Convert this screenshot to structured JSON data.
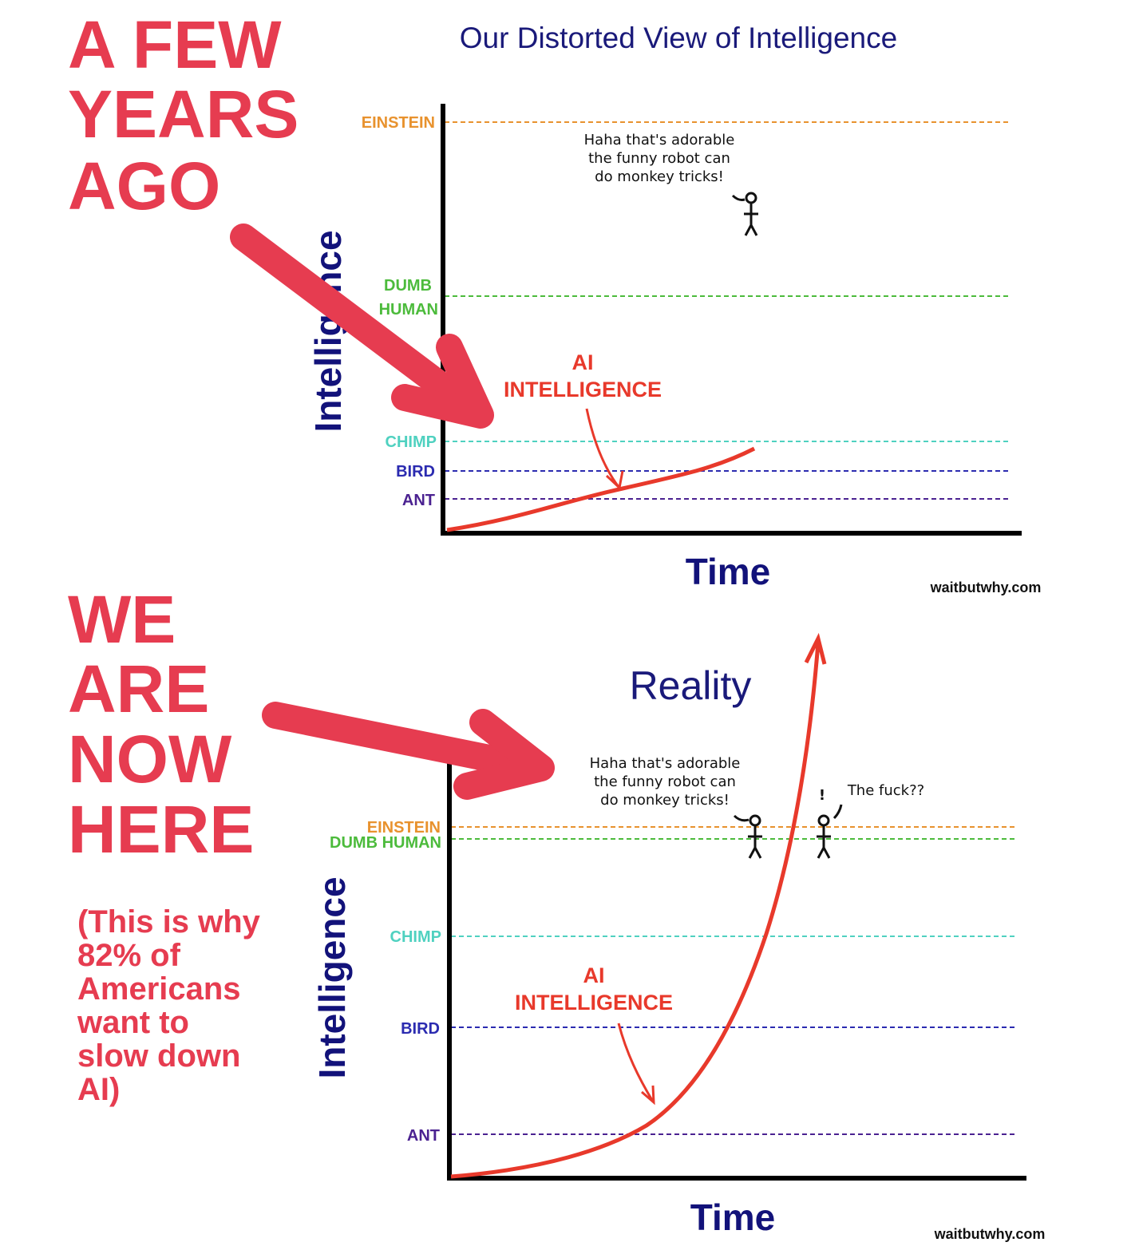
{
  "annotations": {
    "top": [
      "A FEW",
      "YEARS",
      "AGO"
    ],
    "bottom": [
      "WE",
      "ARE",
      "NOW",
      "HERE"
    ],
    "note": [
      "(This is why",
      "82% of",
      "Americans",
      "want to",
      "slow down",
      "AI)"
    ]
  },
  "top_chart": {
    "title": "Our Distorted View of Intelligence",
    "y_label": "Intelligence",
    "x_label": "Time",
    "levels": [
      [
        "EINSTEIN"
      ],
      [
        "DUMB",
        "HUMAN"
      ],
      [
        "CHIMP"
      ],
      [
        "BIRD"
      ],
      [
        "ANT"
      ]
    ],
    "curve_label": [
      "AI",
      "INTELLIGENCE"
    ],
    "speech": [
      "Haha that's adorable",
      "the funny robot can",
      "do monkey tricks!"
    ],
    "credit": "waitbutwhy.com"
  },
  "bottom_chart": {
    "title": "Reality",
    "y_label": "Intelligence",
    "x_label": "Time",
    "levels": [
      "EINSTEIN",
      "DUMB HUMAN",
      "CHIMP",
      "BIRD",
      "ANT"
    ],
    "curve_label": [
      "AI",
      "INTELLIGENCE"
    ],
    "speech": [
      "Haha that's adorable",
      "the funny robot can",
      "do monkey tricks!"
    ],
    "speech2": "The fuck??",
    "exclaim": "!",
    "credit": "waitbutwhy.com"
  }
}
